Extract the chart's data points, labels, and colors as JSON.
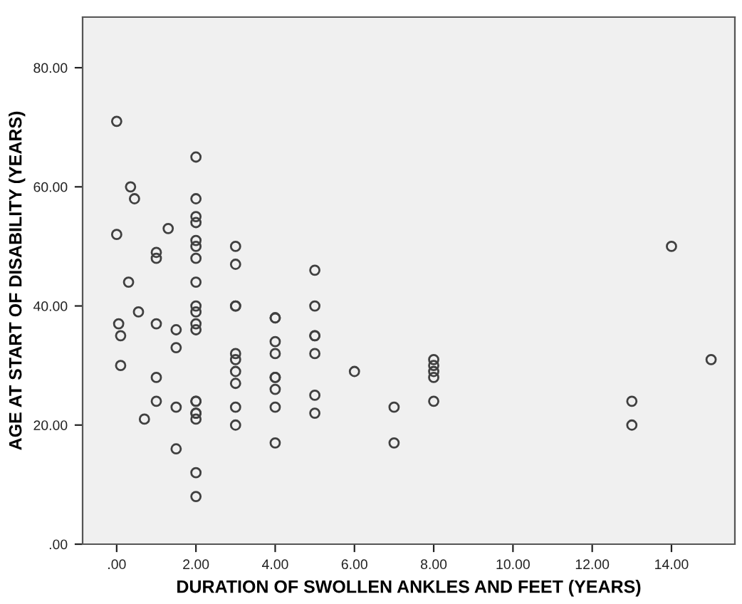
{
  "chart_data": {
    "type": "scatter",
    "xlabel": "DURATION OF SWOLLEN ANKLES AND FEET (YEARS)",
    "ylabel": "AGE AT START OF DISABILITY (YEARS)",
    "x": [
      0,
      0,
      0.05,
      0.1,
      0.1,
      0.3,
      0.35,
      0.45,
      0.55,
      0.7,
      1,
      1,
      1,
      1,
      1,
      1.3,
      1.5,
      1.5,
      1.5,
      1.5,
      2,
      2,
      2,
      2,
      2,
      2,
      2,
      2,
      2,
      2,
      2,
      2,
      2,
      2,
      2,
      2,
      2,
      2,
      2,
      3,
      3,
      3,
      3,
      3,
      3,
      3,
      3,
      3,
      3,
      4,
      4,
      4,
      4,
      4,
      4,
      4,
      4,
      4,
      5,
      5,
      5,
      5,
      5,
      5,
      5,
      6,
      7,
      7,
      8,
      8,
      8,
      8,
      8,
      13,
      13,
      14,
      15
    ],
    "series": [
      {
        "color": "#404040",
        "values": [
          71,
          52,
          37,
          35,
          30,
          44,
          60,
          58,
          39,
          21,
          49,
          48,
          37,
          28,
          24,
          53,
          36,
          33,
          23,
          16,
          65,
          58,
          55,
          54,
          51,
          50,
          48,
          44,
          40,
          39,
          37,
          36,
          24,
          24,
          22,
          22,
          21,
          12,
          8,
          50,
          47,
          40,
          40,
          32,
          31,
          29,
          27,
          23,
          20,
          38,
          38,
          34,
          32,
          28,
          28,
          26,
          23,
          17,
          46,
          40,
          35,
          35,
          32,
          25,
          22,
          29,
          23,
          17,
          31,
          30,
          29,
          28,
          24,
          24,
          20,
          50,
          31
        ]
      }
    ],
    "marker": "circle",
    "xlim": [
      -0.86,
      15.6
    ],
    "ylim": [
      0,
      88.5
    ],
    "xticks": [
      {
        "value": 0,
        "label": ".00"
      },
      {
        "value": 2,
        "label": "2.00"
      },
      {
        "value": 4,
        "label": "4.00"
      },
      {
        "value": 6,
        "label": "6.00"
      },
      {
        "value": 8,
        "label": "8.00"
      },
      {
        "value": 10,
        "label": "10.00"
      },
      {
        "value": 12,
        "label": "12.00"
      },
      {
        "value": 14,
        "label": "14.00"
      }
    ],
    "yticks": [
      {
        "value": 0,
        "label": ".00"
      },
      {
        "value": 20,
        "label": "20.00"
      },
      {
        "value": 40,
        "label": "40.00"
      },
      {
        "value": 60,
        "label": "60.00"
      },
      {
        "value": 80,
        "label": "80.00"
      }
    ],
    "grid": false,
    "legend": false
  }
}
